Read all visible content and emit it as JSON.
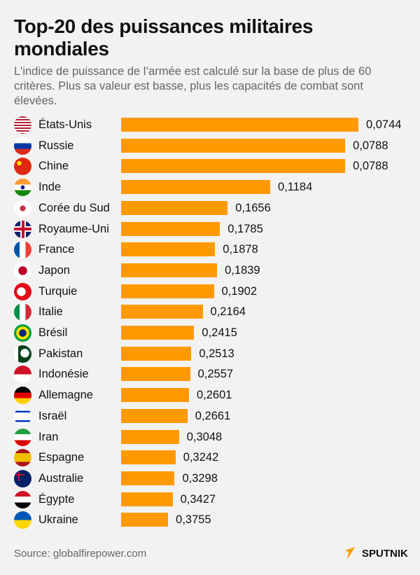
{
  "title": "Top-20 des puissances militaires mondiales",
  "subtitle": "L'indice de puissance de l’armée est calculé sur la base de plus de 60 critères. Plus sa valeur est basse, plus les capacités de combat sont élevées.",
  "source": "Source: globalfirepower.com",
  "logo": "SPUTNIK",
  "colors": {
    "bar": "#ff9900",
    "background": "#f2f2f2",
    "logo_accent": "#ff9900"
  },
  "chart_data": {
    "type": "bar",
    "orientation": "horizontal",
    "title": "Top-20 des puissances militaires mondiales",
    "categories": [
      "États-Unis",
      "Russie",
      "Chine",
      "Inde",
      "Corée du Sud",
      "Royaume-Uni",
      "France",
      "Japon",
      "Turquie",
      "Italie",
      "Brésil",
      "Pakistan",
      "Indonésie",
      "Allemagne",
      "Israël",
      "Iran",
      "Espagne",
      "Australie",
      "Égypte",
      "Ukraine"
    ],
    "values": [
      0.0744,
      0.0788,
      0.0788,
      0.1184,
      0.1656,
      0.1785,
      0.1878,
      0.1839,
      0.1902,
      0.2164,
      0.2415,
      0.2513,
      0.2557,
      0.2601,
      0.2661,
      0.3048,
      0.3242,
      0.3298,
      0.3427,
      0.3755
    ],
    "labels": [
      "0,0744",
      "0,0788",
      "0,0788",
      "0,1184",
      "0,1656",
      "0,1785",
      "0,1878",
      "0,1839",
      "0,1902",
      "0,2164",
      "0,2415",
      "0,2513",
      "0,2557",
      "0,2601",
      "0,2661",
      "0,3048",
      "0,3242",
      "0,3298",
      "0,3427",
      "0,3755"
    ],
    "flags": [
      "us",
      "ru",
      "cn",
      "in",
      "kr",
      "gb",
      "fr",
      "jp",
      "tr",
      "it",
      "br",
      "pk",
      "id",
      "de",
      "il",
      "ir",
      "es",
      "au",
      "eg",
      "ua"
    ],
    "grid": false,
    "axes_visible": false
  }
}
